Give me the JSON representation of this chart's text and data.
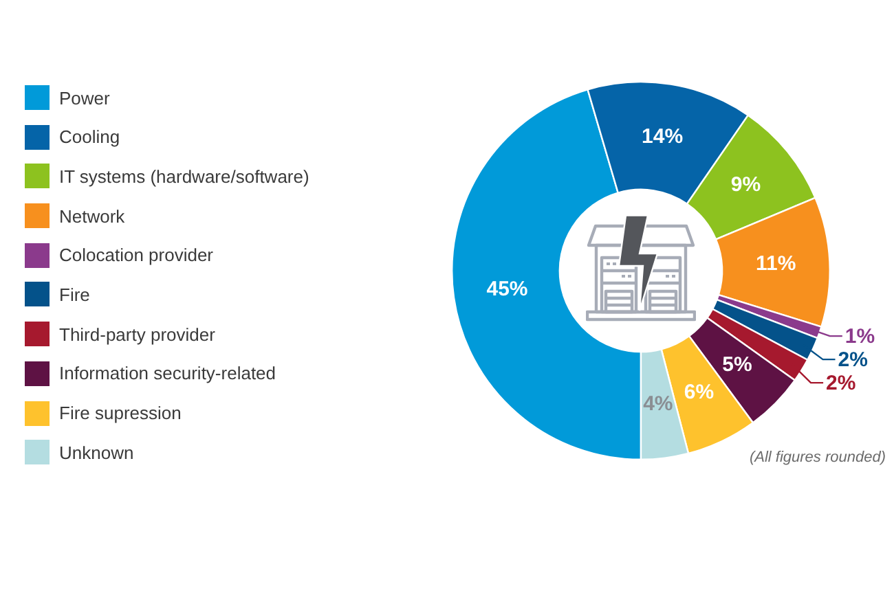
{
  "chart_data": {
    "type": "donut",
    "categories": [
      "Power",
      "Cooling",
      "IT systems (hardware/software)",
      "Network",
      "Colocation provider",
      "Fire",
      "Third-party provider",
      "Information security-related",
      "Fire supression",
      "Unknown"
    ],
    "values": [
      45,
      14,
      9,
      11,
      1,
      2,
      2,
      5,
      6,
      4
    ],
    "colors": [
      "#019ad9",
      "#0564a8",
      "#8dc21f",
      "#f7901e",
      "#8b3a8c",
      "#04528a",
      "#a6192e",
      "#5e1244",
      "#fec22d",
      "#b4dde1"
    ],
    "value_labels": [
      "45%",
      "14%",
      "9%",
      "11%",
      "1%",
      "2%",
      "2%",
      "5%",
      "6%",
      "4%"
    ],
    "legend": "left",
    "annotations": [
      "(All figures rounded)"
    ]
  }
}
